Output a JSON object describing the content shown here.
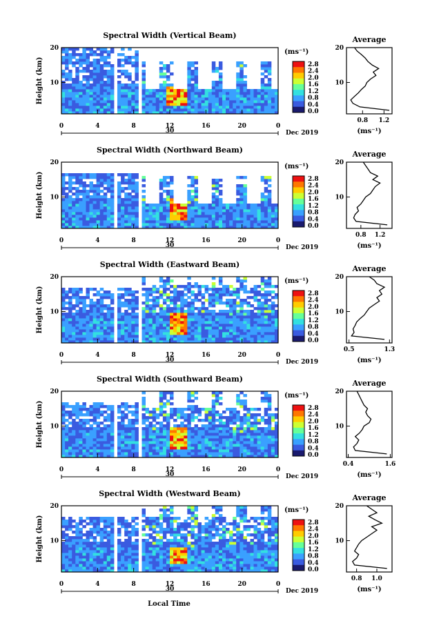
{
  "figure": {
    "x_axis_label": "Local Time",
    "y_axis_label": "Height (km)",
    "date_day": "30",
    "date_label": "Dec 2019",
    "unit_label": "(ms⁻¹)",
    "avg_title": "Average",
    "avg_unit_label": "(ms⁻¹)"
  },
  "colorbar": {
    "tick_labels": [
      "2.8",
      "2.4",
      "2.0",
      "1.6",
      "1.2",
      "0.8",
      "0.4",
      "0.0"
    ],
    "colors": [
      "#1a1a6e",
      "#3a5be0",
      "#3aa0ff",
      "#33e0e0",
      "#66ff99",
      "#ccff33",
      "#ffcc00",
      "#ff7700",
      "#ee1111"
    ]
  },
  "chart_data": [
    {
      "type": "heatmap",
      "title": "Spectral Width (Vertical Beam)",
      "x_ticks": [
        "0",
        "4",
        "8",
        "12",
        "16",
        "20",
        "0"
      ],
      "xlim": [
        0,
        24
      ],
      "y_ticks": [
        "20",
        "10"
      ],
      "ylim": [
        1,
        20
      ],
      "data_gaps_hours": [
        [
          5.9,
          6.3
        ],
        [
          8.4,
          8.9
        ]
      ],
      "tops_km": {
        "before_gap": 20,
        "after_gap": 8
      },
      "hot_feature": {
        "start_hour": 11.8,
        "end_hour": 13.8,
        "start_km": 3,
        "end_km": 9
      },
      "average_profile": {
        "title": "Average",
        "x_ticks": [
          "0.8",
          "1.2"
        ],
        "xlim": [
          0.5,
          1.35
        ],
        "y_ticks": [
          "20",
          "10"
        ],
        "height_km": [
          2,
          3,
          4,
          5,
          6,
          7,
          8,
          9,
          10,
          11,
          12,
          13,
          14,
          15,
          16,
          17,
          18,
          19,
          20
        ],
        "width_ms": [
          1.3,
          0.75,
          0.62,
          0.58,
          0.65,
          0.72,
          0.78,
          0.85,
          0.88,
          0.95,
          1.05,
          1.0,
          1.1,
          0.98,
          0.9,
          0.85,
          0.78,
          0.7,
          0.65
        ]
      }
    },
    {
      "type": "heatmap",
      "title": "Spectral Width (Northward Beam)",
      "x_ticks": [
        "0",
        "4",
        "8",
        "12",
        "16",
        "20",
        "0"
      ],
      "xlim": [
        0,
        24
      ],
      "y_ticks": [
        "20",
        "10"
      ],
      "ylim": [
        1,
        20
      ],
      "data_gaps_hours": [
        [
          5.9,
          6.3
        ],
        [
          8.4,
          8.9
        ],
        [
          17.7,
          17.9
        ]
      ],
      "tops_km": {
        "before_gap": 17,
        "after_gap": 8
      },
      "hot_feature": {
        "start_hour": 12.0,
        "end_hour": 13.8,
        "start_km": 3,
        "end_km": 10
      },
      "average_profile": {
        "title": "Average",
        "x_ticks": [
          "0.8",
          "1.2"
        ],
        "xlim": [
          0.5,
          1.45
        ],
        "y_ticks": [
          "20",
          "10"
        ],
        "height_km": [
          2,
          3,
          4,
          5,
          6,
          7,
          8,
          9,
          10,
          11,
          12,
          13,
          14,
          15,
          16,
          17,
          18,
          19,
          20
        ],
        "width_ms": [
          1.35,
          0.7,
          0.65,
          0.68,
          0.75,
          0.72,
          0.8,
          0.85,
          0.9,
          1.0,
          1.05,
          1.1,
          1.2,
          1.05,
          1.15,
          1.0,
          0.95,
          0.9,
          0.85
        ]
      }
    },
    {
      "type": "heatmap",
      "title": "Spectral Width (Eastward Beam)",
      "x_ticks": [
        "0",
        "4",
        "8",
        "12",
        "16",
        "20",
        "0"
      ],
      "xlim": [
        0,
        24
      ],
      "y_ticks": [
        "20",
        "10"
      ],
      "ylim": [
        1,
        20
      ],
      "data_gaps_hours": [
        [
          5.9,
          6.3
        ],
        [
          8.4,
          8.9
        ],
        [
          17.7,
          17.9
        ]
      ],
      "tops_km": {
        "before_gap": 17,
        "after_gap": 18
      },
      "hot_feature": {
        "start_hour": 12.0,
        "end_hour": 13.9,
        "start_km": 3,
        "end_km": 10
      },
      "average_profile": {
        "title": "Average",
        "x_ticks": [
          "0.5",
          "1.3"
        ],
        "xlim": [
          0.45,
          1.35
        ],
        "y_ticks": [
          "20",
          "10"
        ],
        "height_km": [
          2,
          3,
          4,
          5,
          6,
          7,
          8,
          9,
          10,
          11,
          12,
          13,
          14,
          15,
          16,
          17,
          18,
          19,
          20
        ],
        "width_ms": [
          1.2,
          0.55,
          0.6,
          0.58,
          0.62,
          0.65,
          0.72,
          0.8,
          0.85,
          0.9,
          1.0,
          1.1,
          1.05,
          1.15,
          1.1,
          1.2,
          1.05,
          1.0,
          0.9
        ]
      }
    },
    {
      "type": "heatmap",
      "title": "Spectral Width (Southward Beam)",
      "x_ticks": [
        "0",
        "4",
        "8",
        "12",
        "16",
        "20",
        "0"
      ],
      "xlim": [
        0,
        24
      ],
      "y_ticks": [
        "20",
        "10"
      ],
      "ylim": [
        1,
        20
      ],
      "data_gaps_hours": [
        [
          5.9,
          6.3
        ],
        [
          8.4,
          8.9
        ],
        [
          17.7,
          17.9
        ]
      ],
      "tops_km": {
        "before_gap": 17,
        "after_gap": 15
      },
      "hot_feature": {
        "start_hour": 12.0,
        "end_hour": 13.8,
        "start_km": 3,
        "end_km": 10
      },
      "average_profile": {
        "title": "Average",
        "x_ticks": [
          "0.4",
          "1.6"
        ],
        "xlim": [
          0.35,
          1.65
        ],
        "y_ticks": [
          "20",
          "10"
        ],
        "height_km": [
          2,
          3,
          4,
          5,
          6,
          7,
          8,
          9,
          10,
          11,
          12,
          13,
          14,
          15,
          16,
          17,
          18,
          19,
          20
        ],
        "width_ms": [
          1.5,
          0.6,
          0.55,
          0.65,
          0.7,
          0.6,
          0.72,
          0.8,
          0.85,
          1.0,
          1.05,
          0.95,
          0.9,
          0.95,
          0.85,
          0.8,
          0.75,
          0.7,
          0.65
        ]
      }
    },
    {
      "type": "heatmap",
      "title": "Spectral Width (Westward Beam)",
      "x_ticks": [
        "0",
        "4",
        "8",
        "12",
        "16",
        "20",
        "0"
      ],
      "xlim": [
        0,
        24
      ],
      "y_ticks": [
        "20",
        "10"
      ],
      "ylim": [
        1,
        20
      ],
      "data_gaps_hours": [
        [
          5.9,
          6.3
        ],
        [
          8.4,
          8.9
        ],
        [
          17.7,
          17.9
        ]
      ],
      "tops_km": {
        "before_gap": 17,
        "after_gap": 17
      },
      "hot_feature": {
        "start_hour": 11.9,
        "end_hour": 13.8,
        "start_km": 3,
        "end_km": 8
      },
      "average_profile": {
        "title": "Average",
        "x_ticks": [
          "0.8",
          "1.0"
        ],
        "xlim": [
          0.7,
          1.15
        ],
        "y_ticks": [
          "20",
          "10"
        ],
        "height_km": [
          2,
          3,
          4,
          5,
          6,
          7,
          8,
          9,
          10,
          11,
          12,
          13,
          14,
          15,
          16,
          17,
          18,
          19,
          20
        ],
        "width_ms": [
          1.1,
          0.78,
          0.76,
          0.8,
          0.82,
          0.78,
          0.8,
          0.82,
          0.85,
          0.9,
          0.95,
          1.0,
          0.95,
          1.05,
          0.98,
          0.92,
          1.0,
          0.95,
          0.9
        ]
      }
    }
  ]
}
